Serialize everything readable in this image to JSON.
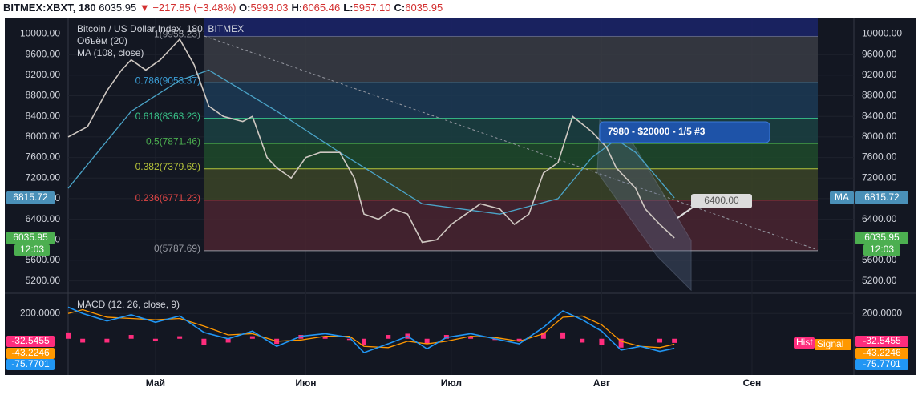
{
  "header": {
    "symbol": "BITMEX:XBXT, 180",
    "last": "6035.95",
    "change": "−217.85 (−3.48%)",
    "ohlc": [
      {
        "key": "O:",
        "value": "5993.03"
      },
      {
        "key": "H:",
        "value": "6065.46"
      },
      {
        "key": "L:",
        "value": "5957.10"
      },
      {
        "key": "C:",
        "value": "6035.95"
      }
    ]
  },
  "chart_data": [
    {
      "type": "line",
      "title": "Bitcoin / US Dollar Index, 180, BITMEX",
      "subtitles": [
        "Объём (20)",
        "MA (108, close)"
      ],
      "x": [
        -18,
        -17,
        -14,
        -10,
        -7,
        -5,
        -2,
        1,
        4,
        5,
        8,
        11,
        14,
        18,
        20,
        23,
        25,
        28,
        31,
        34,
        38,
        41,
        43,
        46,
        49,
        52,
        55,
        58,
        61,
        64,
        67,
        71,
        74,
        77,
        80,
        83,
        86,
        90,
        93,
        95,
        99,
        101,
        104,
        107
      ],
      "series": [
        {
          "name": "price",
          "color": "#cfc8c2",
          "values": [
            8000,
            8050,
            8200,
            8900,
            9300,
            9500,
            9300,
            9500,
            9800,
            9900,
            9400,
            8600,
            8400,
            8300,
            8400,
            7600,
            7400,
            7200,
            7600,
            7700,
            7700,
            7200,
            6500,
            6400,
            6600,
            6500,
            5950,
            6000,
            6300,
            6500,
            6700,
            6600,
            6300,
            6500,
            7300,
            7500,
            8400,
            8100,
            7800,
            7400,
            7000,
            6600,
            6300,
            6035.95
          ]
        },
        {
          "name": "MA",
          "color": "#4aa3c7",
          "values": [
            7000,
            null,
            null,
            null,
            null,
            8500,
            null,
            null,
            null,
            9100,
            null,
            9300,
            null,
            null,
            null,
            null,
            8500,
            null,
            null,
            null,
            7700,
            null,
            null,
            null,
            null,
            null,
            6700,
            null,
            null,
            null,
            null,
            6500,
            null,
            null,
            null,
            6800,
            null,
            7600,
            null,
            7950,
            7700,
            null,
            null,
            6815.72
          ]
        }
      ],
      "xlim": [
        -18,
        144
      ],
      "xticks": [
        {
          "value": 0,
          "label": "Май"
        },
        {
          "value": 31,
          "label": "Июн"
        },
        {
          "value": 61,
          "label": "Июл"
        },
        {
          "value": 92,
          "label": "Авг"
        },
        {
          "value": 123,
          "label": "Сен"
        }
      ],
      "ylim": [
        4960,
        10320
      ],
      "yticks": [
        {
          "value": 5200,
          "label": "5200.00"
        },
        {
          "value": 5600,
          "label": "5600.00"
        },
        {
          "value": 6000,
          "label": "6000.00"
        },
        {
          "value": 6400,
          "label": "6400.00"
        },
        {
          "value": 6800,
          "label": "6800.00"
        },
        {
          "value": 7200,
          "label": "7200.00"
        },
        {
          "value": 7600,
          "label": "7600.00"
        },
        {
          "value": 8000,
          "label": "8000.00"
        },
        {
          "value": 8400,
          "label": "8400.00"
        },
        {
          "value": 8800,
          "label": "8800.00"
        },
        {
          "value": 9200,
          "label": "9200.00"
        },
        {
          "value": 9600,
          "label": "9600.00"
        },
        {
          "value": 10000,
          "label": "10000.00"
        }
      ],
      "fib": [
        {
          "price": 9955.23,
          "label": "1(9955.23)",
          "color": "#9598a1",
          "fill": "#3a3c44"
        },
        {
          "price": 9053.37,
          "label": "0.786(9053.37)",
          "color": "#3c9fd8",
          "fill": "#1c3a55"
        },
        {
          "price": 8363.23,
          "label": "0.618(8363.23)",
          "color": "#38c489",
          "fill": "#1b4142"
        },
        {
          "price": 7871.46,
          "label": "0.5(7871.46)",
          "color": "#4caf50",
          "fill": "#1f4a2a"
        },
        {
          "price": 7379.69,
          "label": "0.382(7379.69)",
          "color": "#b6c43a",
          "fill": "#3b4427"
        },
        {
          "price": 6771.23,
          "label": "0.236(6771.23)",
          "color": "#e04545",
          "fill": "#4a2530"
        },
        {
          "price": 5787.69,
          "label": "0(5787.69)",
          "color": "#9598a1",
          "fill": "none"
        }
      ],
      "price_labels": {
        "ma_name": "MA",
        "ma": "6815.72",
        "last": "6035.95",
        "time": "12:03"
      },
      "annotations": [
        "7980 - $20000 - 1/5 #3",
        "6400.00"
      ]
    },
    {
      "type": "macd",
      "title": "MACD (12, 26, close, 9)",
      "x": [
        -18,
        -15,
        -10,
        -5,
        0,
        5,
        10,
        15,
        20,
        25,
        30,
        35,
        40,
        43,
        48,
        52,
        56,
        60,
        65,
        70,
        75,
        80,
        84,
        88,
        92,
        96,
        100,
        104,
        107
      ],
      "series": [
        {
          "name": "MACD",
          "color": "#2196f3",
          "values": [
            250,
            200,
            140,
            190,
            130,
            180,
            50,
            0,
            60,
            -60,
            20,
            40,
            10,
            -110,
            -40,
            20,
            -80,
            10,
            40,
            0,
            -40,
            90,
            220,
            150,
            60,
            -90,
            -60,
            -100,
            -75.7701
          ]
        },
        {
          "name": "Signal",
          "color": "#ff9800",
          "values": [
            200,
            230,
            170,
            160,
            150,
            160,
            100,
            30,
            40,
            -20,
            -10,
            20,
            20,
            -60,
            -70,
            -20,
            -40,
            -20,
            20,
            10,
            -20,
            40,
            170,
            180,
            110,
            -20,
            -60,
            -70,
            -43.2246
          ]
        },
        {
          "name": "Hist",
          "color": "#ff2d7d",
          "values": [
            50,
            -30,
            -30,
            30,
            -20,
            20,
            -50,
            -30,
            20,
            -40,
            30,
            20,
            -10,
            -50,
            30,
            40,
            -40,
            30,
            20,
            -10,
            -20,
            50,
            50,
            -30,
            -50,
            -70,
            0,
            -30,
            -32.5455
          ]
        }
      ],
      "value_labels": [
        "-75.7701",
        "-43.2246",
        "-32.5455"
      ],
      "ylim": [
        -287,
        360
      ],
      "yticks": [
        {
          "value": 200,
          "label": "200.0000"
        }
      ]
    }
  ]
}
